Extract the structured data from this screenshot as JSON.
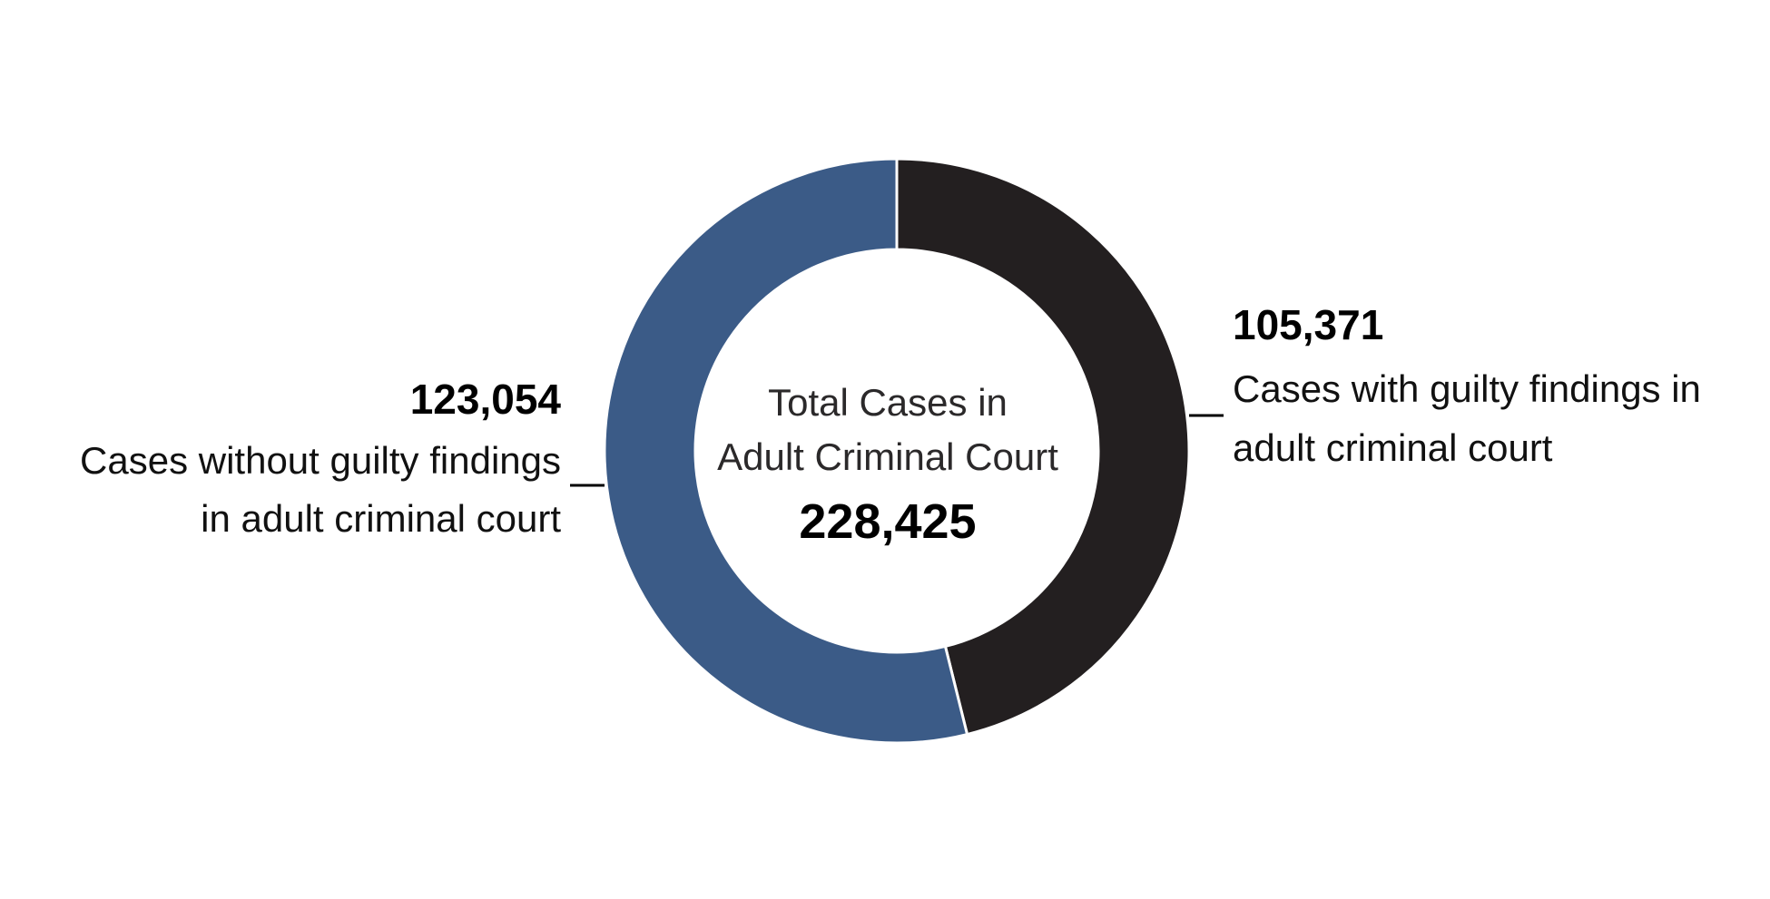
{
  "chart_data": {
    "type": "pie",
    "style": "donut",
    "center": {
      "title_lines": [
        "Total Cases in",
        "Adult Criminal Court"
      ],
      "total": "228,425"
    },
    "slices": [
      {
        "value": 105371,
        "value_label": "105,371",
        "label_lines": [
          "Cases with guilty findings in",
          "adult criminal court"
        ],
        "color": "#231f20"
      },
      {
        "value": 123054,
        "value_label": "123,054",
        "label_lines": [
          "Cases without guilty findings",
          "in adult criminal court"
        ],
        "color": "#3b5b87"
      }
    ]
  }
}
